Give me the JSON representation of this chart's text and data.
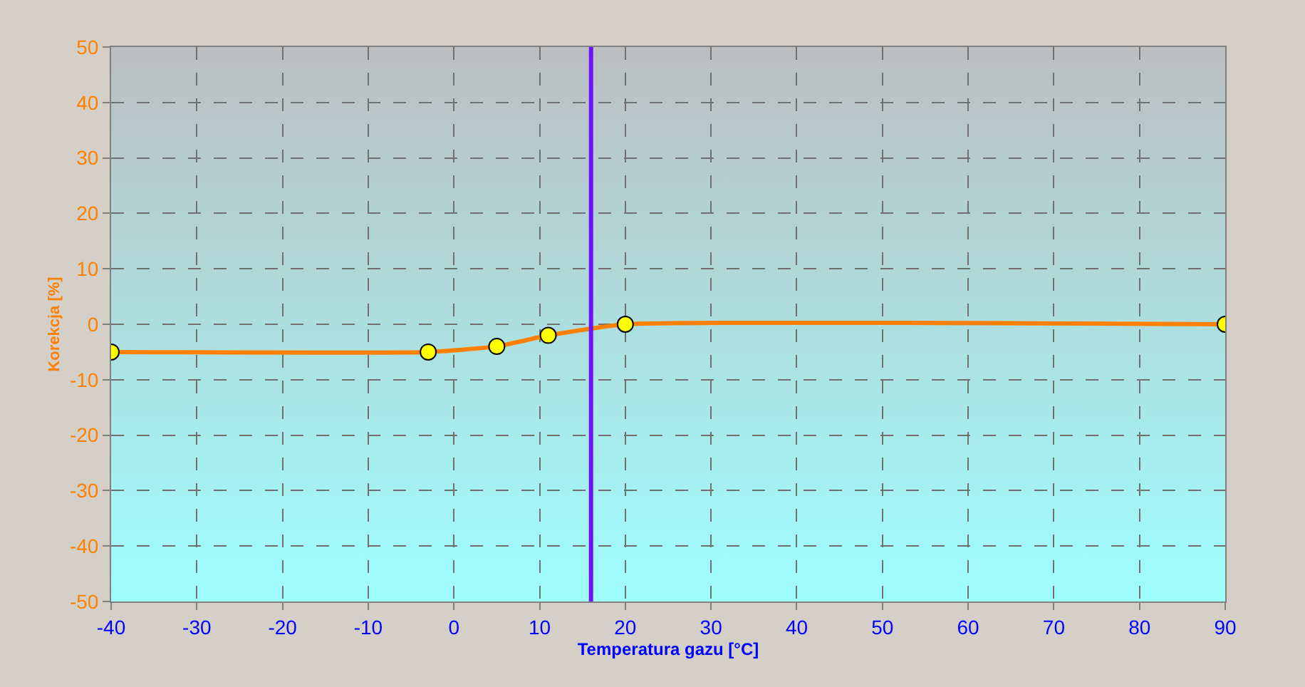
{
  "chart_data": {
    "type": "line",
    "xlabel": "Temperatura gazu [°C]",
    "ylabel": "Korekcja [%]",
    "x": [
      -40,
      -3,
      5,
      11,
      20,
      90
    ],
    "series": [
      {
        "color": "#ff8000",
        "values": [
          -5,
          -5,
          -4,
          -2,
          0,
          0
        ]
      }
    ],
    "marker": "circle",
    "line_style": "solid",
    "grid": true,
    "xlim": [
      -40,
      90
    ],
    "xticks": [
      -40,
      -30,
      -20,
      -10,
      0,
      10,
      20,
      30,
      40,
      50,
      60,
      70,
      80,
      90
    ],
    "ylim": [
      -50,
      50
    ],
    "yticks": [
      -50,
      -40,
      -30,
      -20,
      -10,
      0,
      10,
      20,
      30,
      40,
      50
    ],
    "ref_lines": [
      {
        "axis": "x",
        "value": 16,
        "color": "#7010ff",
        "line_style": "solid"
      }
    ]
  }
}
